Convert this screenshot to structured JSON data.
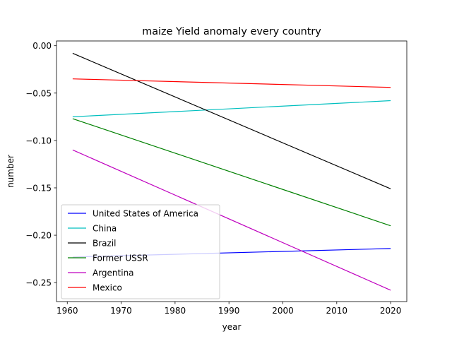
{
  "chart_data": {
    "type": "line",
    "title": "maize Yield anomaly every country",
    "xlabel": "year",
    "ylabel": "number",
    "xlim": [
      1958,
      2023
    ],
    "ylim": [
      -0.27,
      0.005
    ],
    "xticks": [
      1960,
      1970,
      1980,
      1990,
      2000,
      2010,
      2020
    ],
    "xtick_labels": [
      "1960",
      "1970",
      "1980",
      "1990",
      "2000",
      "2010",
      "2020"
    ],
    "yticks": [
      0.0,
      -0.05,
      -0.1,
      -0.15,
      -0.2,
      -0.25
    ],
    "ytick_labels": [
      "0.00",
      "−0.05",
      "−0.10",
      "−0.15",
      "−0.20",
      "−0.25"
    ],
    "grid": false,
    "legend_position": "lower-left",
    "series": [
      {
        "name": "United States of America",
        "color": "#0000ff",
        "x": [
          1961,
          2020
        ],
        "y": [
          -0.223,
          -0.214
        ]
      },
      {
        "name": "China",
        "color": "#00bfbf",
        "x": [
          1961,
          2020
        ],
        "y": [
          -0.075,
          -0.058
        ]
      },
      {
        "name": "Brazil",
        "color": "#000000",
        "x": [
          1961,
          2020
        ],
        "y": [
          -0.008,
          -0.151
        ]
      },
      {
        "name": "Former USSR",
        "color": "#008000",
        "x": [
          1961,
          2020
        ],
        "y": [
          -0.077,
          -0.19
        ]
      },
      {
        "name": "Argentina",
        "color": "#bf00bf",
        "x": [
          1961,
          2020
        ],
        "y": [
          -0.11,
          -0.258
        ]
      },
      {
        "name": "Mexico",
        "color": "#ff0000",
        "x": [
          1961,
          2020
        ],
        "y": [
          -0.035,
          -0.044
        ]
      }
    ]
  }
}
